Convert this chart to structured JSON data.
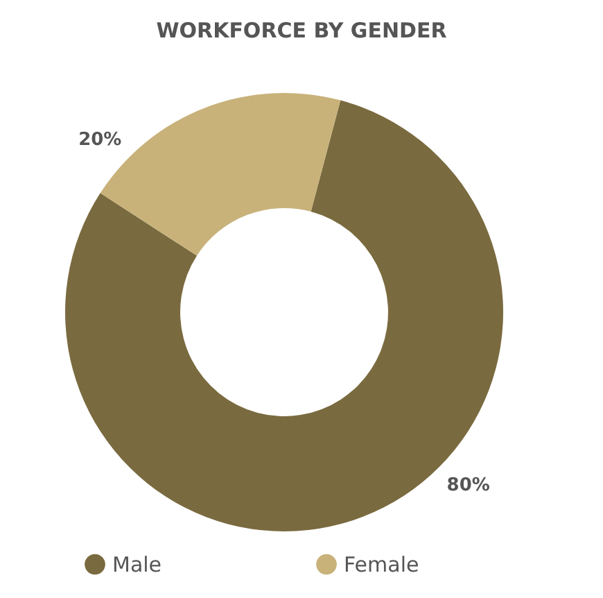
{
  "chart_data": {
    "type": "donut",
    "title": "WORKFORCE BY GENDER",
    "categories": [
      "Male",
      "Female"
    ],
    "values": [
      80,
      20
    ],
    "colors": [
      "#7a6a3f",
      "#c8b27a"
    ],
    "value_labels": [
      "80%",
      "20%"
    ],
    "legend": "bottom"
  }
}
